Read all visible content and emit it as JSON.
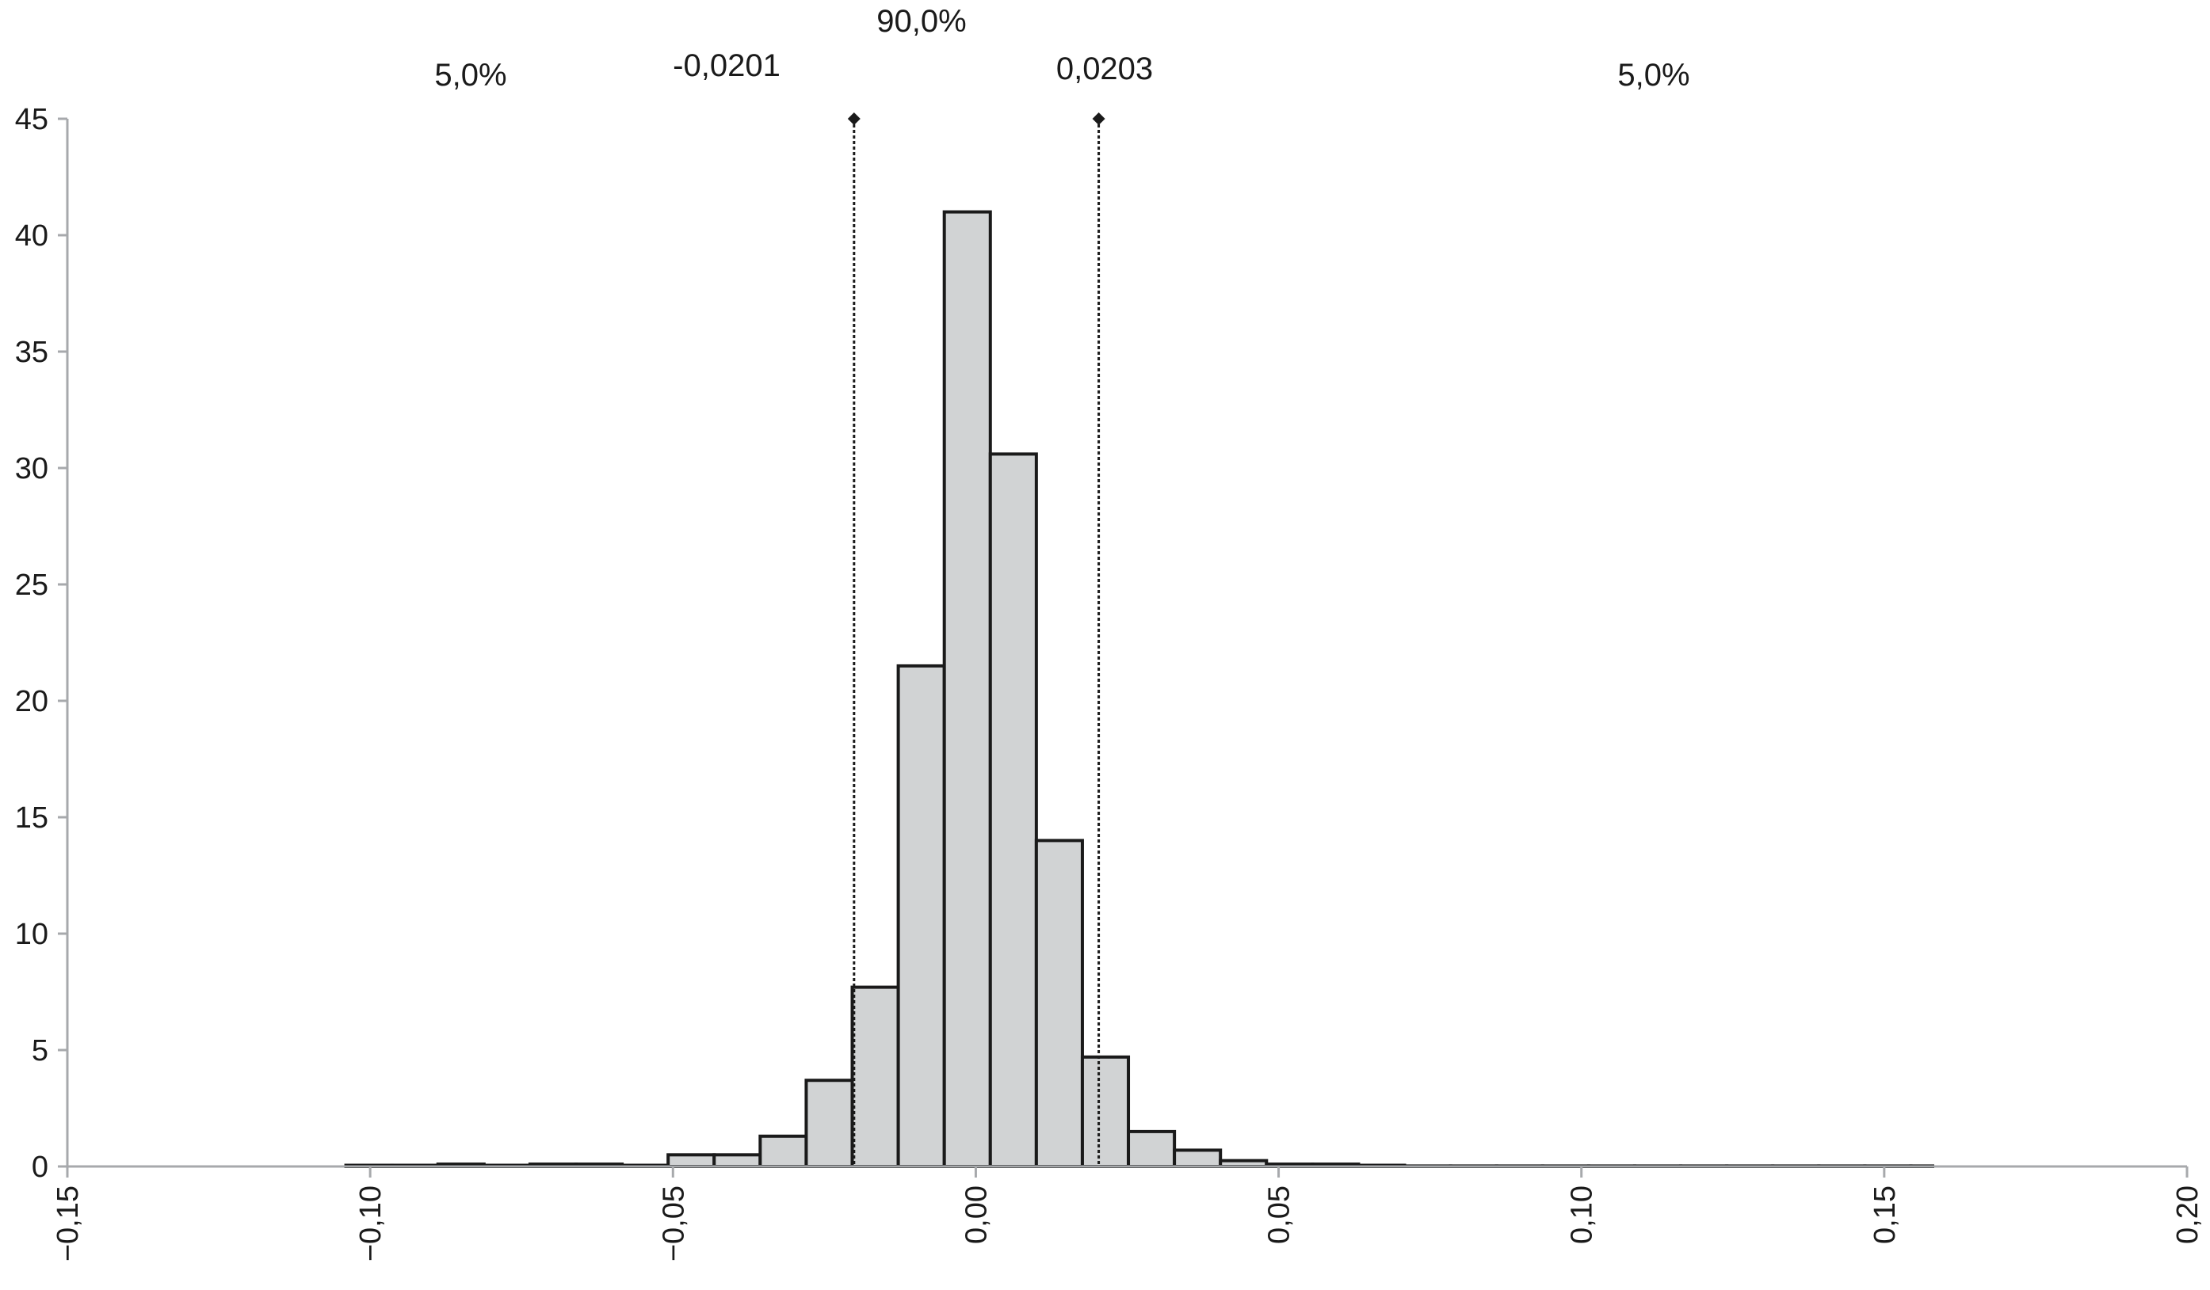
{
  "chart_data": {
    "type": "bar",
    "title": "",
    "xlabel": "",
    "ylabel": "",
    "xlim": [
      -0.15,
      0.2
    ],
    "ylim": [
      0,
      45
    ],
    "grid": false,
    "bin_width": 0.0076,
    "bins": [
      {
        "x0": -0.104,
        "x1": -0.0964,
        "value": 0.05
      },
      {
        "x0": -0.0964,
        "x1": -0.0888,
        "value": 0.05
      },
      {
        "x0": -0.0888,
        "x1": -0.0812,
        "value": 0.1
      },
      {
        "x0": -0.0812,
        "x1": -0.0736,
        "value": 0.05
      },
      {
        "x0": -0.0736,
        "x1": -0.066,
        "value": 0.1
      },
      {
        "x0": -0.066,
        "x1": -0.0584,
        "value": 0.1
      },
      {
        "x0": -0.0584,
        "x1": -0.0508,
        "value": 0.05
      },
      {
        "x0": -0.0508,
        "x1": -0.0432,
        "value": 0.5
      },
      {
        "x0": -0.0432,
        "x1": -0.0356,
        "value": 0.5
      },
      {
        "x0": -0.0356,
        "x1": -0.028,
        "value": 1.3
      },
      {
        "x0": -0.028,
        "x1": -0.0204,
        "value": 3.7
      },
      {
        "x0": -0.0204,
        "x1": -0.0128,
        "value": 7.7
      },
      {
        "x0": -0.0128,
        "x1": -0.0052,
        "value": 21.5
      },
      {
        "x0": -0.0052,
        "x1": 0.0024,
        "value": 41.0
      },
      {
        "x0": 0.0024,
        "x1": 0.01,
        "value": 30.6
      },
      {
        "x0": 0.01,
        "x1": 0.0176,
        "value": 14.0
      },
      {
        "x0": 0.0176,
        "x1": 0.0252,
        "value": 4.7
      },
      {
        "x0": 0.0252,
        "x1": 0.0328,
        "value": 1.5
      },
      {
        "x0": 0.0328,
        "x1": 0.0404,
        "value": 0.7
      },
      {
        "x0": 0.0404,
        "x1": 0.048,
        "value": 0.25
      },
      {
        "x0": 0.048,
        "x1": 0.0556,
        "value": 0.1
      },
      {
        "x0": 0.0556,
        "x1": 0.0632,
        "value": 0.1
      },
      {
        "x0": 0.0632,
        "x1": 0.0708,
        "value": 0.05
      },
      {
        "x0": 0.0708,
        "x1": 0.0784,
        "value": 0.02
      },
      {
        "x0": 0.0784,
        "x1": 0.086,
        "value": 0.02
      },
      {
        "x0": 0.086,
        "x1": 0.0936,
        "value": 0.02
      },
      {
        "x0": 0.0936,
        "x1": 0.1012,
        "value": 0.02
      },
      {
        "x0": 0.1012,
        "x1": 0.1088,
        "value": 0.02
      },
      {
        "x0": 0.1088,
        "x1": 0.1164,
        "value": 0.02
      },
      {
        "x0": 0.1164,
        "x1": 0.124,
        "value": 0.02
      },
      {
        "x0": 0.124,
        "x1": 0.1316,
        "value": 0.02
      },
      {
        "x0": 0.1316,
        "x1": 0.1392,
        "value": 0.02
      },
      {
        "x0": 0.1392,
        "x1": 0.1468,
        "value": 0.02
      },
      {
        "x0": 0.1468,
        "x1": 0.1544,
        "value": 0.02
      },
      {
        "x0": 0.1544,
        "x1": 0.158,
        "value": 0.02
      }
    ],
    "x_ticks": [
      -0.15,
      -0.1,
      -0.05,
      0.0,
      0.05,
      0.1,
      0.15,
      0.2
    ],
    "x_tick_labels": [
      "−0,15",
      "−0,10",
      "−0,05",
      "0,00",
      "0,05",
      "0,10",
      "0,15",
      "0,20"
    ],
    "y_ticks": [
      0,
      5,
      10,
      15,
      20,
      25,
      30,
      35,
      40,
      45
    ],
    "y_tick_labels": [
      "0",
      "5",
      "10",
      "15",
      "20",
      "25",
      "30",
      "35",
      "40",
      "45"
    ],
    "markers": [
      {
        "x": -0.0201,
        "label": "-0,0201"
      },
      {
        "x": 0.0203,
        "label": "0,0203"
      }
    ],
    "annotations": {
      "left_tail": "5,0%",
      "center": "90,0%",
      "right_tail": "5,0%"
    },
    "colors": {
      "bar_fill": "#d1d3d4",
      "bar_stroke": "#1a1a1a",
      "axis": "#a7a9ac",
      "marker": "#1a1a1a"
    }
  }
}
